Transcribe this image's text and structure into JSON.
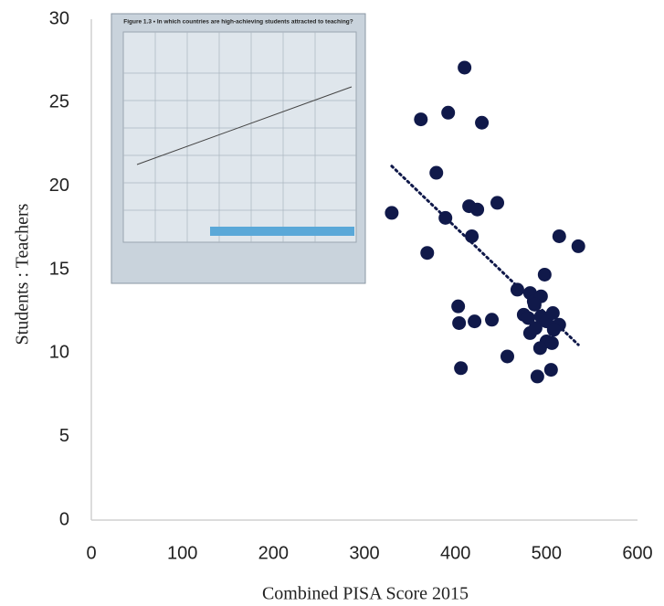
{
  "chart_data": {
    "type": "scatter",
    "x_label": "Combined PISA Score 2015",
    "y_label": "Students : Teachers",
    "color": "#10194a",
    "xlim": [
      0,
      600
    ],
    "xticks": [
      0,
      100,
      200,
      300,
      400,
      500,
      600
    ],
    "ylim": [
      0,
      30
    ],
    "yticks": [
      0,
      5,
      10,
      15,
      20,
      25,
      30
    ],
    "grid": false,
    "inset_title": "Figure 1.3 • In which countries are high-achieving students attracted to teaching?",
    "x": [
      330,
      362,
      392,
      379,
      410,
      429,
      369,
      389,
      415,
      424,
      418,
      446,
      403,
      404,
      421,
      440,
      406,
      457,
      468,
      475,
      482,
      486,
      494,
      498,
      490,
      505,
      514,
      535,
      482,
      488,
      494,
      500,
      507,
      514,
      508,
      500,
      493,
      506,
      480,
      487
    ],
    "values": [
      18.4,
      24.0,
      24.4,
      20.8,
      27.1,
      23.8,
      16.0,
      18.1,
      18.8,
      18.6,
      17.0,
      19.0,
      12.8,
      11.8,
      11.9,
      12.0,
      9.1,
      9.8,
      13.8,
      12.3,
      13.6,
      13.1,
      13.4,
      14.7,
      8.6,
      9.0,
      17.0,
      16.4,
      11.2,
      11.5,
      12.2,
      11.9,
      12.4,
      11.7,
      11.4,
      10.7,
      10.3,
      10.6,
      12.1,
      12.9
    ],
    "trendline": {
      "x": [
        330,
        535
      ],
      "values": [
        21.2,
        10.5
      ]
    }
  }
}
